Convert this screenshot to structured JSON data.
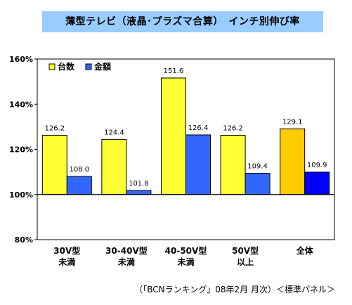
{
  "chart_data": {
    "type": "bar",
    "title": "薄型テレビ（液晶･プラズマ合算）　インチ別伸び率",
    "categories": [
      {
        "line1": "30V型",
        "line2": "未満"
      },
      {
        "line1": "30-40V型",
        "line2": "未満"
      },
      {
        "line1": "40-50V型",
        "line2": "未満"
      },
      {
        "line1": "50V型",
        "line2": "以上"
      },
      {
        "line1": "全体",
        "line2": ""
      }
    ],
    "series": [
      {
        "name": "台数",
        "color": "#FFFF33",
        "total_color": "#FFCC00",
        "values": [
          126.2,
          124.4,
          151.6,
          126.2,
          129.1
        ],
        "labels": [
          "126.2",
          "124.4",
          "151.6",
          "126.2",
          "129.1"
        ]
      },
      {
        "name": "金額",
        "color": "#3366FF",
        "total_color": "#0000FF",
        "values": [
          108.0,
          101.8,
          126.4,
          109.4,
          109.9
        ],
        "labels": [
          "108.0",
          "101.8",
          "126.4",
          "109.4",
          "109.9"
        ]
      }
    ],
    "ylim": [
      80,
      160
    ],
    "yticks": [
      "80%",
      "100%",
      "120%",
      "140%",
      "160%"
    ],
    "baseline": 100,
    "legend_position": "top-left"
  },
  "source_note": "（「BCNランキング」08年2月 月次）＜標準パネル＞"
}
